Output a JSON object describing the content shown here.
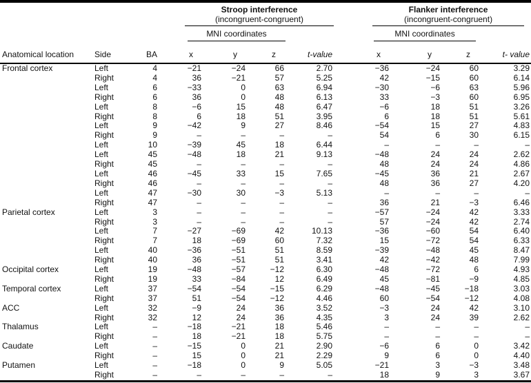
{
  "header": {
    "stroop": {
      "title": "Stroop interference",
      "subtitle": "(incongruent-congruent)",
      "mni_label": "MNI coordinates"
    },
    "flanker": {
      "title": "Flanker interference",
      "subtitle": "(incongruent-congruent)",
      "mni_label": "MNI coordinates"
    },
    "columns": {
      "anatomical": "Anatomical location",
      "side": "Side",
      "ba": "BA",
      "x": "x",
      "y": "y",
      "z": "z",
      "stroop_t": "t-value",
      "flanker_t": "t- value"
    }
  },
  "groups": [
    {
      "region": "Frontal cortex",
      "rows": [
        {
          "side": "Left",
          "ba": "4",
          "stroop": [
            "−21",
            "−24",
            "66",
            "2.70"
          ],
          "flanker": [
            "−36",
            "−24",
            "60",
            "3.29"
          ]
        },
        {
          "side": "Right",
          "ba": "4",
          "stroop": [
            "36",
            "−21",
            "57",
            "5.25"
          ],
          "flanker": [
            "42",
            "−15",
            "60",
            "6.14"
          ]
        },
        {
          "side": "Left",
          "ba": "6",
          "stroop": [
            "−33",
            "0",
            "63",
            "6.94"
          ],
          "flanker": [
            "−30",
            "−6",
            "63",
            "5.96"
          ]
        },
        {
          "side": "Right",
          "ba": "6",
          "stroop": [
            "36",
            "0",
            "48",
            "6.13"
          ],
          "flanker": [
            "33",
            "−3",
            "60",
            "6.95"
          ]
        },
        {
          "side": "Left",
          "ba": "8",
          "stroop": [
            "−6",
            "15",
            "48",
            "6.47"
          ],
          "flanker": [
            "−6",
            "18",
            "51",
            "3.26"
          ]
        },
        {
          "side": "Right",
          "ba": "8",
          "stroop": [
            "6",
            "18",
            "51",
            "3.95"
          ],
          "flanker": [
            "6",
            "18",
            "51",
            "5.61"
          ]
        },
        {
          "side": "Left",
          "ba": "9",
          "stroop": [
            "−42",
            "9",
            "27",
            "8.46"
          ],
          "flanker": [
            "−54",
            "15",
            "27",
            "4.83"
          ]
        },
        {
          "side": "Right",
          "ba": "9",
          "stroop": [
            "–",
            "–",
            "–",
            "–"
          ],
          "flanker": [
            "54",
            "6",
            "30",
            "6.15"
          ]
        },
        {
          "side": "Left",
          "ba": "10",
          "stroop": [
            "−39",
            "45",
            "18",
            "6.44"
          ],
          "flanker": [
            "–",
            "–",
            "–",
            "–"
          ]
        },
        {
          "side": "Left",
          "ba": "45",
          "stroop": [
            "−48",
            "18",
            "21",
            "9.13"
          ],
          "flanker": [
            "−48",
            "24",
            "24",
            "2.62"
          ]
        },
        {
          "side": "Right",
          "ba": "45",
          "stroop": [
            "–",
            "–",
            "–",
            "–"
          ],
          "flanker": [
            "48",
            "24",
            "24",
            "4.86"
          ]
        },
        {
          "side": "Left",
          "ba": "46",
          "stroop": [
            "−45",
            "33",
            "15",
            "7.65"
          ],
          "flanker": [
            "−45",
            "36",
            "21",
            "2.67"
          ]
        },
        {
          "side": "Right",
          "ba": "46",
          "stroop": [
            "–",
            "–",
            "–",
            "–"
          ],
          "flanker": [
            "48",
            "36",
            "27",
            "4.20"
          ]
        },
        {
          "side": "Left",
          "ba": "47",
          "stroop": [
            "−30",
            "30",
            "−3",
            "5.13"
          ],
          "flanker": [
            "–",
            "–",
            "–",
            "–"
          ]
        },
        {
          "side": "Right",
          "ba": "47",
          "stroop": [
            "–",
            "–",
            "–",
            "–"
          ],
          "flanker": [
            "36",
            "21",
            "−3",
            "6.46"
          ]
        }
      ]
    },
    {
      "region": "Parietal cortex",
      "rows": [
        {
          "side": "Left",
          "ba": "3",
          "stroop": [
            "–",
            "–",
            "–",
            "–"
          ],
          "flanker": [
            "−57",
            "−24",
            "42",
            "3.33"
          ]
        },
        {
          "side": "Right",
          "ba": "3",
          "stroop": [
            "–",
            "–",
            "–",
            "–"
          ],
          "flanker": [
            "57",
            "−24",
            "42",
            "2.74"
          ]
        },
        {
          "side": "Left",
          "ba": "7",
          "stroop": [
            "−27",
            "−69",
            "42",
            "10.13"
          ],
          "flanker": [
            "−36",
            "−60",
            "54",
            "6.40"
          ]
        },
        {
          "side": "Right",
          "ba": "7",
          "stroop": [
            "18",
            "−69",
            "60",
            "7.32"
          ],
          "flanker": [
            "15",
            "−72",
            "54",
            "6.33"
          ]
        },
        {
          "side": "Left",
          "ba": "40",
          "stroop": [
            "−36",
            "−51",
            "51",
            "8.59"
          ],
          "flanker": [
            "−39",
            "−48",
            "45",
            "8.47"
          ]
        },
        {
          "side": "Right",
          "ba": "40",
          "stroop": [
            "36",
            "−51",
            "51",
            "3.41"
          ],
          "flanker": [
            "42",
            "−42",
            "48",
            "7.99"
          ]
        }
      ]
    },
    {
      "region": "Occipital cortex",
      "rows": [
        {
          "side": "Left",
          "ba": "19",
          "stroop": [
            "−48",
            "−57",
            "−12",
            "6.30"
          ],
          "flanker": [
            "−48",
            "−72",
            "6",
            "4.93"
          ]
        },
        {
          "side": "Right",
          "ba": "19",
          "stroop": [
            "33",
            "−84",
            "12",
            "6.49"
          ],
          "flanker": [
            "45",
            "−81",
            "−9",
            "4.85"
          ]
        }
      ]
    },
    {
      "region": "Temporal cortex",
      "rows": [
        {
          "side": "Left",
          "ba": "37",
          "stroop": [
            "−54",
            "−54",
            "−15",
            "6.29"
          ],
          "flanker": [
            "−48",
            "−45",
            "−18",
            "3.03"
          ]
        },
        {
          "side": "Right",
          "ba": "37",
          "stroop": [
            "51",
            "−54",
            "−12",
            "4.46"
          ],
          "flanker": [
            "60",
            "−54",
            "−12",
            "4.08"
          ]
        }
      ]
    },
    {
      "region": "ACC",
      "rows": [
        {
          "side": "Left",
          "ba": "32",
          "stroop": [
            "−9",
            "24",
            "36",
            "3.52"
          ],
          "flanker": [
            "−3",
            "24",
            "42",
            "3.10"
          ]
        },
        {
          "side": "Right",
          "ba": "32",
          "stroop": [
            "12",
            "24",
            "36",
            "4.35"
          ],
          "flanker": [
            "3",
            "24",
            "39",
            "2.62"
          ]
        }
      ]
    },
    {
      "region": "Thalamus",
      "rows": [
        {
          "side": "Left",
          "ba": "–",
          "stroop": [
            "−18",
            "−21",
            "18",
            "5.46"
          ],
          "flanker": [
            "–",
            "–",
            "–",
            "–"
          ]
        },
        {
          "side": "Right",
          "ba": "–",
          "stroop": [
            "18",
            "−21",
            "18",
            "5.75"
          ],
          "flanker": [
            "–",
            "–",
            "–",
            "–"
          ]
        }
      ]
    },
    {
      "region": "Caudate",
      "rows": [
        {
          "side": "Left",
          "ba": "–",
          "stroop": [
            "−15",
            "0",
            "21",
            "2.90"
          ],
          "flanker": [
            "−6",
            "6",
            "0",
            "3.42"
          ]
        },
        {
          "side": "Right",
          "ba": "–",
          "stroop": [
            "15",
            "0",
            "21",
            "2.29"
          ],
          "flanker": [
            "9",
            "6",
            "0",
            "4.40"
          ]
        }
      ]
    },
    {
      "region": "Putamen",
      "rows": [
        {
          "side": "Left",
          "ba": "–",
          "stroop": [
            "−18",
            "0",
            "9",
            "5.05"
          ],
          "flanker": [
            "−21",
            "3",
            "−3",
            "3.48"
          ]
        },
        {
          "side": "Right",
          "ba": "–",
          "stroop": [
            "–",
            "–",
            "–",
            "–"
          ],
          "flanker": [
            "18",
            "9",
            "3",
            "3.67"
          ]
        }
      ]
    }
  ]
}
